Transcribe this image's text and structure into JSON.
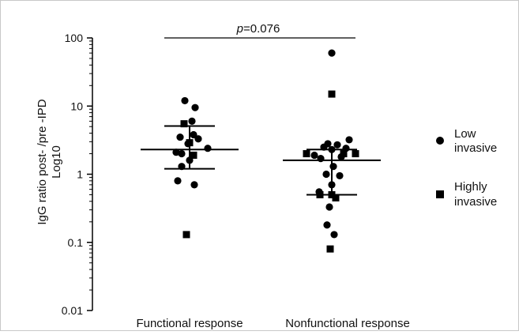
{
  "chart_data": {
    "type": "scatter",
    "ylabel_line1": "IgG ratio post- /pre -IPD",
    "ylabel_line2": "Log10",
    "yscale": "log",
    "ylim": [
      0.01,
      100
    ],
    "yticks": [
      {
        "value": 100,
        "label": "100"
      },
      {
        "value": 10,
        "label": "10"
      },
      {
        "value": 1,
        "label": "1"
      },
      {
        "value": 0.1,
        "label": "0.1"
      },
      {
        "value": 0.01,
        "label": "0.01"
      }
    ],
    "categories": [
      "Functional response",
      "Nonfunctional response"
    ],
    "grid": false,
    "legend_position": "right",
    "annotation": {
      "p_label": "p",
      "p_value": "=0.076"
    },
    "series": [
      {
        "name": "Low invasive",
        "marker": "circle",
        "color": "#000000",
        "legend_line1": "Low",
        "legend_line2": "invasive",
        "points": [
          {
            "category": 0,
            "jitter": -0.06,
            "y": 12.0
          },
          {
            "category": 0,
            "jitter": 0.07,
            "y": 9.5
          },
          {
            "category": 0,
            "jitter": 0.03,
            "y": 6.0
          },
          {
            "category": 0,
            "jitter": 0.05,
            "y": 3.8
          },
          {
            "category": 0,
            "jitter": -0.12,
            "y": 3.5
          },
          {
            "category": 0,
            "jitter": 0.11,
            "y": 3.3
          },
          {
            "category": 0,
            "jitter": -0.02,
            "y": 2.8
          },
          {
            "category": 0,
            "jitter": -0.17,
            "y": 2.1
          },
          {
            "category": 0,
            "jitter": -0.1,
            "y": 2.0
          },
          {
            "category": 0,
            "jitter": 0.23,
            "y": 2.4
          },
          {
            "category": 0,
            "jitter": 0.0,
            "y": 1.6
          },
          {
            "category": 0,
            "jitter": -0.1,
            "y": 1.3
          },
          {
            "category": 0,
            "jitter": -0.15,
            "y": 0.8
          },
          {
            "category": 0,
            "jitter": 0.06,
            "y": 0.7
          },
          {
            "category": 1,
            "jitter": 0.0,
            "y": 60
          },
          {
            "category": 1,
            "jitter": 0.22,
            "y": 3.2
          },
          {
            "category": 1,
            "jitter": -0.05,
            "y": 2.8
          },
          {
            "category": 1,
            "jitter": 0.07,
            "y": 2.7
          },
          {
            "category": 1,
            "jitter": -0.1,
            "y": 2.5
          },
          {
            "category": 1,
            "jitter": 0.18,
            "y": 2.4
          },
          {
            "category": 1,
            "jitter": 0.0,
            "y": 2.3
          },
          {
            "category": 1,
            "jitter": -0.22,
            "y": 1.9
          },
          {
            "category": 1,
            "jitter": 0.12,
            "y": 1.8
          },
          {
            "category": 1,
            "jitter": -0.14,
            "y": 1.7
          },
          {
            "category": 1,
            "jitter": 0.02,
            "y": 1.3
          },
          {
            "category": 1,
            "jitter": -0.07,
            "y": 1.0
          },
          {
            "category": 1,
            "jitter": 0.1,
            "y": 0.95
          },
          {
            "category": 1,
            "jitter": 0.0,
            "y": 0.7
          },
          {
            "category": 1,
            "jitter": -0.16,
            "y": 0.55
          },
          {
            "category": 1,
            "jitter": -0.03,
            "y": 0.33
          },
          {
            "category": 1,
            "jitter": -0.06,
            "y": 0.18
          },
          {
            "category": 1,
            "jitter": 0.03,
            "y": 0.13
          }
        ]
      },
      {
        "name": "Highly invasive",
        "marker": "square",
        "color": "#000000",
        "legend_line1": "Highly",
        "legend_line2": "invasive",
        "points": [
          {
            "category": 0,
            "jitter": -0.07,
            "y": 5.5
          },
          {
            "category": 0,
            "jitter": 0.0,
            "y": 2.9
          },
          {
            "category": 0,
            "jitter": 0.05,
            "y": 1.9
          },
          {
            "category": 0,
            "jitter": -0.04,
            "y": 0.13
          },
          {
            "category": 1,
            "jitter": 0.0,
            "y": 15
          },
          {
            "category": 1,
            "jitter": -0.32,
            "y": 2.0
          },
          {
            "category": 1,
            "jitter": 0.15,
            "y": 2.0
          },
          {
            "category": 1,
            "jitter": 0.3,
            "y": 2.0
          },
          {
            "category": 1,
            "jitter": -0.15,
            "y": 0.5
          },
          {
            "category": 1,
            "jitter": 0.0,
            "y": 0.5
          },
          {
            "category": 1,
            "jitter": 0.05,
            "y": 0.45
          },
          {
            "category": 1,
            "jitter": -0.02,
            "y": 0.08
          }
        ]
      }
    ],
    "summary": [
      {
        "category": 0,
        "center": 2.3,
        "upper": 5.1,
        "lower": 1.2
      },
      {
        "category": 1,
        "center": 1.6,
        "upper": 2.3,
        "lower": 0.5
      }
    ]
  }
}
